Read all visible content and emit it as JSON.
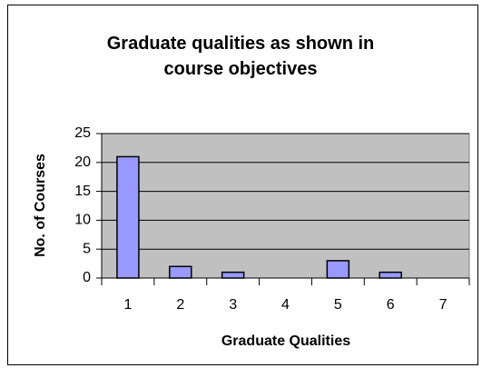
{
  "chart_data": {
    "type": "bar",
    "title": "Graduate qualities as shown in course objectives",
    "x_label": "Graduate Qualities",
    "y_label": "No. of Courses",
    "categories": [
      "1",
      "2",
      "3",
      "4",
      "5",
      "6",
      "7"
    ],
    "values": [
      21,
      2,
      1,
      0,
      3,
      1,
      0
    ],
    "color": "#9999ff",
    "ylim": [
      0,
      25
    ],
    "yticks": [
      0,
      5,
      10,
      15,
      20,
      25
    ],
    "grid": true
  }
}
